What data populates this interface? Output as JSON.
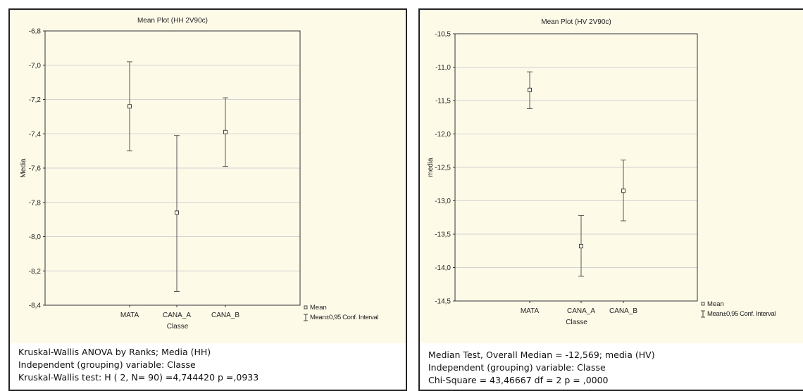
{
  "charts": [
    {
      "title": "Mean Plot (HH 2V90c)",
      "ylabel": "Media",
      "xlabel": "Classe",
      "legend_mean": "Mean",
      "legend_interval": "Mean±0,95 Conf. Interval",
      "stats": [
        "Kruskal-Wallis ANOVA by Ranks; Media (HH)",
        "Independent (grouping) variable: Classe",
        "Kruskal-Wallis test: H ( 2, N= 90) =4,744420 p =,0933"
      ]
    },
    {
      "title": "Mean Plot (HV 2V90c)",
      "ylabel": "media",
      "xlabel": "Classe",
      "legend_mean": "Mean",
      "legend_interval": "Mean±0,95 Conf. Interval",
      "stats": [
        "Median Test,  Overall Median = -12,569; media (HV)",
        "Independent (grouping) variable: Classe",
        "Chi-Square = 43,46667 df = 2 p = ,0000"
      ]
    }
  ],
  "chart_data": [
    {
      "type": "scatter",
      "title": "Mean Plot (HH 2V90c)",
      "xlabel": "Classe",
      "ylabel": "Media",
      "categories": [
        "MATA",
        "CANA_A",
        "CANA_B"
      ],
      "mean": [
        -7.24,
        -7.86,
        -7.39
      ],
      "lower": [
        -7.5,
        -8.32,
        -7.59
      ],
      "upper": [
        -6.98,
        -7.41,
        -7.19
      ],
      "ylim": [
        -8.4,
        -6.8
      ],
      "yticks": [
        -6.8,
        -7.0,
        -7.2,
        -7.4,
        -7.6,
        -7.8,
        -8.0,
        -8.2,
        -8.4
      ],
      "ytick_labels": [
        "-6,8",
        "-7,0",
        "-7,2",
        "-7,4",
        "-7,6",
        "-7,8",
        "-8,0",
        "-8,2",
        "-8,4"
      ],
      "grid": true,
      "legend": "right-bottom"
    },
    {
      "type": "scatter",
      "title": "Mean Plot (HV 2V90c)",
      "xlabel": "Classe",
      "ylabel": "media",
      "categories": [
        "MATA",
        "CANA_A",
        "CANA_B"
      ],
      "mean": [
        -11.34,
        -13.68,
        -12.85
      ],
      "lower": [
        -11.62,
        -14.13,
        -13.3
      ],
      "upper": [
        -11.07,
        -13.22,
        -12.39
      ],
      "ylim": [
        -14.5,
        -10.5
      ],
      "yticks": [
        -10.5,
        -11.0,
        -11.5,
        -12.0,
        -12.5,
        -13.0,
        -13.5,
        -14.0,
        -14.5
      ],
      "ytick_labels": [
        "-10,5",
        "-11,0",
        "-11,5",
        "-12,0",
        "-12,5",
        "-13,0",
        "-13,5",
        "-14,0",
        "-14,5"
      ],
      "grid": true,
      "legend": "right-bottom"
    }
  ]
}
